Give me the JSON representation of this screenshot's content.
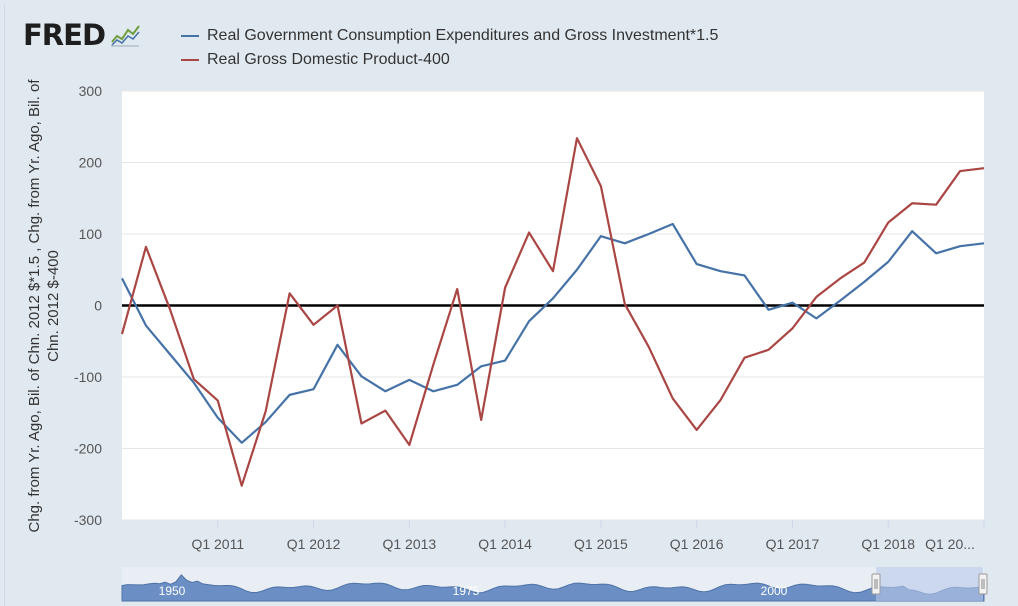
{
  "app": {
    "logo_text": "FRED",
    "logo_icon": "fred-graph-icon"
  },
  "colors": {
    "series_blue": "#4572a7",
    "series_red": "#aa4643",
    "background": "#e1e9f0",
    "plot_bg": "#ffffff",
    "zero_line": "#000000",
    "navigator_fill": "#6b8fc4",
    "navigator_selection": "#b9c9ea"
  },
  "chart_data": {
    "type": "line",
    "ylabel": "Chg. from Yr. Ago, Bil. of Chn. 2012 $*1.5 , Chg. from Yr. Ago, Bil. of Chn. 2012 $-400",
    "ylim": [
      -300,
      300
    ],
    "xlim": [
      "Q1 2010",
      "Q1 2019"
    ],
    "y_ticks": [
      "300",
      "200",
      "100",
      "0",
      "-100",
      "-200",
      "-300"
    ],
    "x_ticks": [
      "Q1 2011",
      "Q1 2012",
      "Q1 2013",
      "Q1 2014",
      "Q1 2015",
      "Q1 2016",
      "Q1 2017",
      "Q1 2018",
      "Q1 20..."
    ],
    "grid": true,
    "legend_position": "top-left",
    "reference_line": 0,
    "x": [
      "Q1 2010",
      "Q2 2010",
      "Q3 2010",
      "Q4 2010",
      "Q1 2011",
      "Q2 2011",
      "Q3 2011",
      "Q4 2011",
      "Q1 2012",
      "Q2 2012",
      "Q3 2012",
      "Q4 2012",
      "Q1 2013",
      "Q2 2013",
      "Q3 2013",
      "Q4 2013",
      "Q1 2014",
      "Q2 2014",
      "Q3 2014",
      "Q4 2014",
      "Q1 2015",
      "Q2 2015",
      "Q3 2015",
      "Q4 2015",
      "Q1 2016",
      "Q2 2016",
      "Q3 2016",
      "Q4 2016",
      "Q1 2017",
      "Q2 2017",
      "Q3 2017",
      "Q4 2017",
      "Q1 2018",
      "Q2 2018",
      "Q3 2018",
      "Q4 2018",
      "Q1 2019"
    ],
    "series": [
      {
        "name": "Real Government Consumption Expenditures and Gross Investment*1.5",
        "color": "#4572a7",
        "values": [
          38,
          -28,
          -68,
          -108,
          -157,
          -192,
          -163,
          -125,
          -117,
          -55,
          -99,
          -120,
          -104,
          -120,
          -111,
          -85,
          -77,
          -22,
          10,
          50,
          97,
          87,
          100,
          114,
          58,
          48,
          42,
          -6,
          4,
          -18,
          7,
          33,
          61,
          104,
          73,
          83,
          87
        ]
      },
      {
        "name": "Real Gross Domestic Product-400",
        "color": "#aa4643",
        "values": [
          -40,
          82,
          -5,
          -103,
          -133,
          -252,
          -148,
          17,
          -27,
          0,
          -165,
          -147,
          -195,
          -83,
          23,
          -160,
          25,
          102,
          48,
          234,
          167,
          2,
          -58,
          -130,
          -174,
          -132,
          -73,
          -62,
          -32,
          12,
          38,
          60,
          116,
          143,
          141,
          188,
          192
        ]
      }
    ]
  },
  "navigator": {
    "labels": [
      "1950",
      "1975",
      "2000"
    ]
  }
}
